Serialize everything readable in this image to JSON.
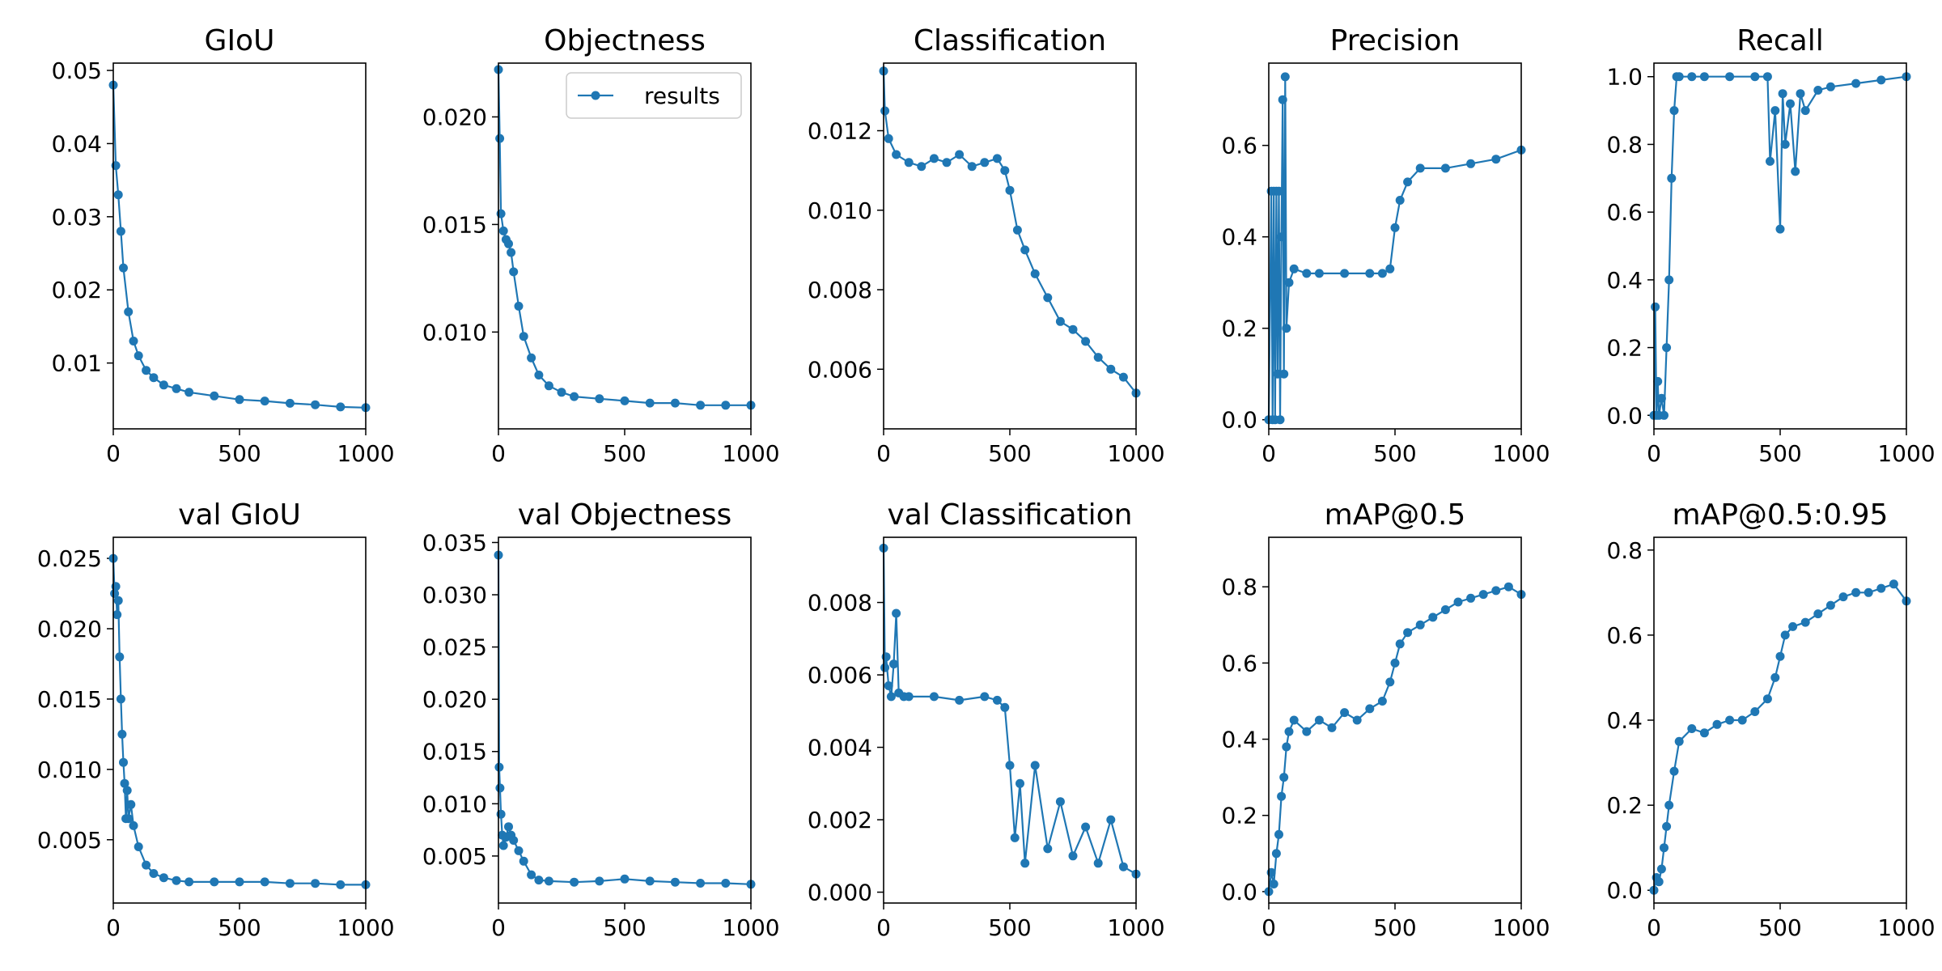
{
  "chart_data": [
    {
      "type": "line",
      "title": "GIoU",
      "xlim": [
        0,
        1000
      ],
      "ylim": [
        0.001,
        0.051
      ],
      "xticks": [
        0,
        500,
        1000
      ],
      "xtick_labels": [
        "0",
        "500",
        "1000"
      ],
      "yticks": [
        0.01,
        0.02,
        0.03,
        0.04,
        0.05
      ],
      "ytick_labels": [
        "0.01",
        "0.02",
        "0.03",
        "0.04",
        "0.05"
      ],
      "series": [
        {
          "name": "results",
          "color": "#1f77b4",
          "x": [
            0,
            10,
            20,
            30,
            40,
            60,
            80,
            100,
            130,
            160,
            200,
            250,
            300,
            400,
            500,
            600,
            700,
            800,
            900,
            1000
          ],
          "y": [
            0.048,
            0.037,
            0.033,
            0.028,
            0.023,
            0.017,
            0.013,
            0.011,
            0.009,
            0.008,
            0.007,
            0.0065,
            0.006,
            0.0055,
            0.005,
            0.0048,
            0.0045,
            0.0043,
            0.004,
            0.0039
          ]
        }
      ]
    },
    {
      "type": "line",
      "title": "Objectness",
      "xlim": [
        0,
        1000
      ],
      "ylim": [
        0.0055,
        0.0225
      ],
      "xticks": [
        0,
        500,
        1000
      ],
      "xtick_labels": [
        "0",
        "500",
        "1000"
      ],
      "yticks": [
        0.01,
        0.015,
        0.02
      ],
      "ytick_labels": [
        "0.010",
        "0.015",
        "0.020"
      ],
      "legend": {
        "entries": [
          "results"
        ],
        "position": "top-right"
      },
      "series": [
        {
          "name": "results",
          "color": "#1f77b4",
          "x": [
            0,
            5,
            10,
            20,
            30,
            40,
            50,
            60,
            80,
            100,
            130,
            160,
            200,
            250,
            300,
            400,
            500,
            600,
            700,
            800,
            900,
            1000
          ],
          "y": [
            0.0222,
            0.019,
            0.0155,
            0.0147,
            0.0143,
            0.0141,
            0.0137,
            0.0128,
            0.0112,
            0.0098,
            0.0088,
            0.008,
            0.0075,
            0.0072,
            0.007,
            0.0069,
            0.0068,
            0.0067,
            0.0067,
            0.0066,
            0.0066,
            0.0066
          ]
        }
      ]
    },
    {
      "type": "line",
      "title": "Classification",
      "xlim": [
        0,
        1000
      ],
      "ylim": [
        0.0045,
        0.0137
      ],
      "xticks": [
        0,
        500,
        1000
      ],
      "xtick_labels": [
        "0",
        "500",
        "1000"
      ],
      "yticks": [
        0.006,
        0.008,
        0.01,
        0.012
      ],
      "ytick_labels": [
        "0.006",
        "0.008",
        "0.010",
        "0.012"
      ],
      "series": [
        {
          "name": "results",
          "color": "#1f77b4",
          "x": [
            0,
            5,
            20,
            50,
            100,
            150,
            200,
            250,
            300,
            350,
            400,
            450,
            480,
            500,
            530,
            560,
            600,
            650,
            700,
            750,
            800,
            850,
            900,
            950,
            1000
          ],
          "y": [
            0.0135,
            0.0125,
            0.0118,
            0.0114,
            0.0112,
            0.0111,
            0.0113,
            0.0112,
            0.0114,
            0.0111,
            0.0112,
            0.0113,
            0.011,
            0.0105,
            0.0095,
            0.009,
            0.0084,
            0.0078,
            0.0072,
            0.007,
            0.0067,
            0.0063,
            0.006,
            0.0058,
            0.0054
          ]
        }
      ]
    },
    {
      "type": "line",
      "title": "Precision",
      "xlim": [
        0,
        1000
      ],
      "ylim": [
        -0.02,
        0.78
      ],
      "xticks": [
        0,
        500,
        1000
      ],
      "xtick_labels": [
        "0",
        "500",
        "1000"
      ],
      "yticks": [
        0,
        0.2,
        0.4,
        0.6
      ],
      "ytick_labels": [
        "0.0",
        "0.2",
        "0.4",
        "0.6"
      ],
      "series": [
        {
          "name": "results",
          "color": "#1f77b4",
          "x": [
            0,
            10,
            15,
            20,
            25,
            30,
            35,
            40,
            45,
            50,
            55,
            60,
            65,
            70,
            80,
            100,
            150,
            200,
            300,
            400,
            450,
            480,
            500,
            520,
            550,
            600,
            700,
            800,
            900,
            1000
          ],
          "y": [
            0.0,
            0.5,
            0.0,
            0.5,
            0.0,
            0.5,
            0.1,
            0.5,
            0.0,
            0.4,
            0.7,
            0.1,
            0.75,
            0.2,
            0.3,
            0.33,
            0.32,
            0.32,
            0.32,
            0.32,
            0.32,
            0.33,
            0.42,
            0.48,
            0.52,
            0.55,
            0.55,
            0.56,
            0.57,
            0.59
          ]
        }
      ]
    },
    {
      "type": "line",
      "title": "Recall",
      "xlim": [
        0,
        1000
      ],
      "ylim": [
        -0.04,
        1.04
      ],
      "xticks": [
        0,
        500,
        1000
      ],
      "xtick_labels": [
        "0",
        "500",
        "1000"
      ],
      "yticks": [
        0,
        0.2,
        0.4,
        0.6,
        0.8,
        1.0
      ],
      "ytick_labels": [
        "0.0",
        "0.2",
        "0.4",
        "0.6",
        "0.8",
        "1.0"
      ],
      "series": [
        {
          "name": "results",
          "color": "#1f77b4",
          "x": [
            0,
            5,
            10,
            15,
            20,
            30,
            40,
            50,
            60,
            70,
            80,
            90,
            100,
            150,
            200,
            300,
            400,
            450,
            460,
            480,
            500,
            510,
            520,
            540,
            560,
            580,
            600,
            650,
            700,
            800,
            900,
            1000
          ],
          "y": [
            0.0,
            0.32,
            0.0,
            0.1,
            0.0,
            0.05,
            0.0,
            0.2,
            0.4,
            0.7,
            0.9,
            1.0,
            1.0,
            1.0,
            1.0,
            1.0,
            1.0,
            1.0,
            0.75,
            0.9,
            0.55,
            0.95,
            0.8,
            0.92,
            0.72,
            0.95,
            0.9,
            0.96,
            0.97,
            0.98,
            0.99,
            1.0
          ]
        }
      ]
    },
    {
      "type": "line",
      "title": "val GIoU",
      "xlim": [
        0,
        1000
      ],
      "ylim": [
        0.0005,
        0.0265
      ],
      "xticks": [
        0,
        500,
        1000
      ],
      "xtick_labels": [
        "0",
        "500",
        "1000"
      ],
      "yticks": [
        0.005,
        0.01,
        0.015,
        0.02,
        0.025
      ],
      "ytick_labels": [
        "0.005",
        "0.010",
        "0.015",
        "0.020",
        "0.025"
      ],
      "series": [
        {
          "name": "results",
          "color": "#1f77b4",
          "x": [
            0,
            5,
            10,
            15,
            20,
            25,
            30,
            35,
            40,
            45,
            50,
            55,
            60,
            70,
            80,
            100,
            130,
            160,
            200,
            250,
            300,
            400,
            500,
            600,
            700,
            800,
            900,
            1000
          ],
          "y": [
            0.025,
            0.0225,
            0.023,
            0.021,
            0.022,
            0.018,
            0.015,
            0.0125,
            0.0105,
            0.009,
            0.0065,
            0.0085,
            0.0065,
            0.0075,
            0.006,
            0.0045,
            0.0032,
            0.0026,
            0.0023,
            0.0021,
            0.002,
            0.002,
            0.002,
            0.002,
            0.0019,
            0.0019,
            0.0018,
            0.0018
          ]
        }
      ]
    },
    {
      "type": "line",
      "title": "val Objectness",
      "xlim": [
        0,
        1000
      ],
      "ylim": [
        0.0005,
        0.0355
      ],
      "xticks": [
        0,
        500,
        1000
      ],
      "xtick_labels": [
        "0",
        "500",
        "1000"
      ],
      "yticks": [
        0.005,
        0.01,
        0.015,
        0.02,
        0.025,
        0.03,
        0.035
      ],
      "ytick_labels": [
        "0.005",
        "0.010",
        "0.015",
        "0.020",
        "0.025",
        "0.030",
        "0.035"
      ],
      "series": [
        {
          "name": "results",
          "color": "#1f77b4",
          "x": [
            0,
            3,
            6,
            10,
            15,
            20,
            30,
            40,
            50,
            60,
            80,
            100,
            130,
            160,
            200,
            300,
            400,
            500,
            600,
            700,
            800,
            900,
            1000
          ],
          "y": [
            0.0338,
            0.0135,
            0.0115,
            0.009,
            0.007,
            0.006,
            0.0068,
            0.0078,
            0.007,
            0.0065,
            0.0055,
            0.0045,
            0.0032,
            0.0027,
            0.0026,
            0.0025,
            0.0026,
            0.0028,
            0.0026,
            0.0025,
            0.0024,
            0.0024,
            0.0023
          ]
        }
      ]
    },
    {
      "type": "line",
      "title": "val Classification",
      "xlim": [
        0,
        1000
      ],
      "ylim": [
        -0.0003,
        0.0098
      ],
      "xticks": [
        0,
        500,
        1000
      ],
      "xtick_labels": [
        "0",
        "500",
        "1000"
      ],
      "yticks": [
        0,
        0.002,
        0.004,
        0.006,
        0.008
      ],
      "ytick_labels": [
        "0.000",
        "0.002",
        "0.004",
        "0.006",
        "0.008"
      ],
      "series": [
        {
          "name": "results",
          "color": "#1f77b4",
          "x": [
            0,
            5,
            10,
            20,
            30,
            40,
            50,
            60,
            80,
            100,
            200,
            300,
            400,
            450,
            480,
            500,
            520,
            540,
            560,
            600,
            650,
            700,
            750,
            800,
            850,
            900,
            950,
            1000
          ],
          "y": [
            0.0095,
            0.0062,
            0.0065,
            0.0057,
            0.0054,
            0.0063,
            0.0077,
            0.0055,
            0.0054,
            0.0054,
            0.0054,
            0.0053,
            0.0054,
            0.0053,
            0.0051,
            0.0035,
            0.0015,
            0.003,
            0.0008,
            0.0035,
            0.0012,
            0.0025,
            0.001,
            0.0018,
            0.0008,
            0.002,
            0.0007,
            0.0005
          ]
        }
      ]
    },
    {
      "type": "line",
      "title": "mAP@0.5",
      "xlim": [
        0,
        1000
      ],
      "ylim": [
        -0.03,
        0.93
      ],
      "xticks": [
        0,
        500,
        1000
      ],
      "xtick_labels": [
        "0",
        "500",
        "1000"
      ],
      "yticks": [
        0,
        0.2,
        0.4,
        0.6,
        0.8
      ],
      "ytick_labels": [
        "0.0",
        "0.2",
        "0.4",
        "0.6",
        "0.8"
      ],
      "series": [
        {
          "name": "results",
          "color": "#1f77b4",
          "x": [
            0,
            10,
            20,
            30,
            40,
            50,
            60,
            70,
            80,
            100,
            150,
            200,
            250,
            300,
            350,
            400,
            450,
            480,
            500,
            520,
            550,
            600,
            650,
            700,
            750,
            800,
            850,
            900,
            950,
            1000
          ],
          "y": [
            0.0,
            0.05,
            0.02,
            0.1,
            0.15,
            0.25,
            0.3,
            0.38,
            0.42,
            0.45,
            0.42,
            0.45,
            0.43,
            0.47,
            0.45,
            0.48,
            0.5,
            0.55,
            0.6,
            0.65,
            0.68,
            0.7,
            0.72,
            0.74,
            0.76,
            0.77,
            0.78,
            0.79,
            0.8,
            0.78
          ]
        }
      ]
    },
    {
      "type": "line",
      "title": "mAP@0.5:0.95",
      "xlim": [
        0,
        1000
      ],
      "ylim": [
        -0.03,
        0.83
      ],
      "xticks": [
        0,
        500,
        1000
      ],
      "xtick_labels": [
        "0",
        "500",
        "1000"
      ],
      "yticks": [
        0,
        0.2,
        0.4,
        0.6,
        0.8
      ],
      "ytick_labels": [
        "0.0",
        "0.2",
        "0.4",
        "0.6",
        "0.8"
      ],
      "series": [
        {
          "name": "results",
          "color": "#1f77b4",
          "x": [
            0,
            10,
            20,
            30,
            40,
            50,
            60,
            80,
            100,
            150,
            200,
            250,
            300,
            350,
            400,
            450,
            480,
            500,
            520,
            550,
            600,
            650,
            700,
            750,
            800,
            850,
            900,
            950,
            1000
          ],
          "y": [
            0.0,
            0.03,
            0.02,
            0.05,
            0.1,
            0.15,
            0.2,
            0.28,
            0.35,
            0.38,
            0.37,
            0.39,
            0.4,
            0.4,
            0.42,
            0.45,
            0.5,
            0.55,
            0.6,
            0.62,
            0.63,
            0.65,
            0.67,
            0.69,
            0.7,
            0.7,
            0.71,
            0.72,
            0.68
          ]
        }
      ]
    }
  ]
}
